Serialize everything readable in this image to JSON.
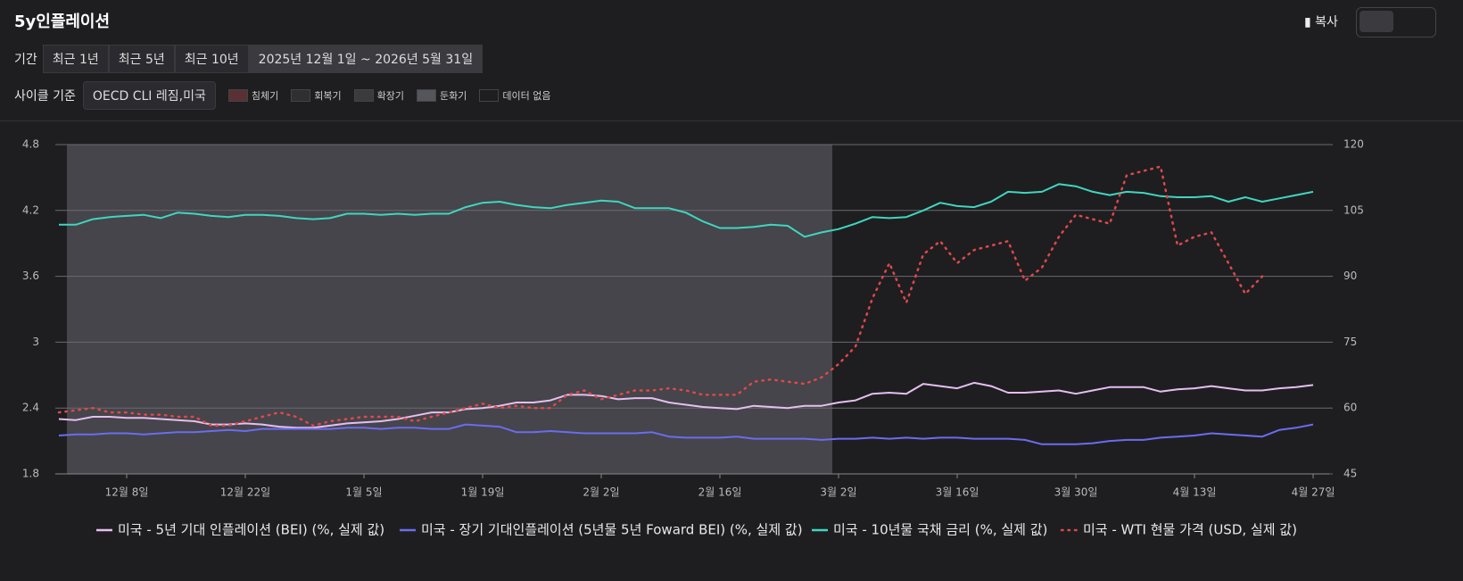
{
  "header": {
    "title": "5y인플레이션",
    "copy": "복사",
    "period_label": "기간",
    "period_buttons": [
      "최근 1년",
      "최근 5년",
      "최근 10년"
    ],
    "date_range": "2025년 12월 1일 ~ 2026년 5월 31일",
    "cycle_label": "사이클 기준",
    "cycle_source": "OECD CLI 레짐,미국",
    "cycles": [
      {
        "label": "침체기",
        "color": "#5a3034"
      },
      {
        "label": "회복기",
        "color": "#2e2e33"
      },
      {
        "label": "확장기",
        "color": "#3a3a3f"
      },
      {
        "label": "둔화기",
        "color": "#55555c"
      },
      {
        "label": "데이터 없음",
        "color": "#1e1e21"
      }
    ]
  },
  "chart_data": {
    "type": "line",
    "categories": [
      null,
      null,
      null,
      null,
      "12월 8일",
      null,
      null,
      null,
      null,
      null,
      null,
      "12월 22일",
      null,
      null,
      null,
      null,
      null,
      null,
      "1월 5일",
      null,
      null,
      null,
      null,
      null,
      null,
      "1월 19일",
      null,
      null,
      null,
      null,
      null,
      null,
      "2월 2일",
      null,
      null,
      null,
      null,
      null,
      null,
      "2월 16일",
      null,
      null,
      null,
      null,
      null,
      null,
      "3월 2일",
      null,
      null,
      null,
      null,
      null,
      null,
      "3월 16일",
      null,
      null,
      null,
      null,
      null,
      null,
      "3월 30일",
      null,
      null,
      null,
      null,
      null,
      null,
      "4월 13일",
      null,
      null,
      null,
      null,
      null,
      null,
      "4월 27일"
    ],
    "ylim": [
      1.8,
      4.8
    ],
    "yticks": [
      1.8,
      2.4,
      3,
      3.6,
      4.2,
      4.8
    ],
    "y2lim": [
      45,
      120
    ],
    "y2ticks": [
      45,
      60,
      75,
      90,
      105,
      120
    ],
    "grid": true,
    "series": [
      {
        "name": "미국 - 5년 기대 인플레이션 (BEI) (%, 실제 값)",
        "color": "#e6bff0",
        "style": "solid",
        "values": [
          2.3,
          2.29,
          2.32,
          2.32,
          2.31,
          2.31,
          2.3,
          2.29,
          2.28,
          2.25,
          2.25,
          2.26,
          2.25,
          2.23,
          2.22,
          2.22,
          2.24,
          2.26,
          2.27,
          2.28,
          2.3,
          2.33,
          2.36,
          2.36,
          2.39,
          2.4,
          2.42,
          2.45,
          2.45,
          2.47,
          2.52,
          2.52,
          2.51,
          2.48,
          2.49,
          2.49,
          2.45,
          2.43,
          2.41,
          2.4,
          2.39,
          2.42,
          2.41,
          2.4,
          2.42,
          2.42,
          2.45,
          2.47,
          2.53,
          2.54,
          2.53,
          2.62,
          2.6,
          2.58,
          2.63,
          2.6,
          2.54,
          2.54,
          2.55,
          2.56,
          2.53,
          2.56,
          2.59,
          2.59,
          2.59,
          2.55,
          2.57,
          2.58,
          2.6,
          2.58,
          2.56,
          2.56,
          2.58,
          2.59,
          2.61
        ]
      },
      {
        "name": "미국 - 장기 기대인플레이션 (5년물 5년 Foward BEI) (%, 실제 값)",
        "color": "#6b6cf0",
        "style": "solid",
        "values": [
          2.15,
          2.16,
          2.16,
          2.17,
          2.17,
          2.16,
          2.17,
          2.18,
          2.18,
          2.19,
          2.2,
          2.19,
          2.21,
          2.21,
          2.21,
          2.21,
          2.21,
          2.22,
          2.22,
          2.21,
          2.22,
          2.22,
          2.21,
          2.21,
          2.25,
          2.24,
          2.23,
          2.18,
          2.18,
          2.19,
          2.18,
          2.17,
          2.17,
          2.17,
          2.17,
          2.18,
          2.14,
          2.13,
          2.13,
          2.13,
          2.14,
          2.12,
          2.12,
          2.12,
          2.12,
          2.11,
          2.12,
          2.12,
          2.13,
          2.12,
          2.13,
          2.12,
          2.13,
          2.13,
          2.12,
          2.12,
          2.12,
          2.11,
          2.07,
          2.07,
          2.07,
          2.08,
          2.1,
          2.11,
          2.11,
          2.13,
          2.14,
          2.15,
          2.17,
          2.16,
          2.15,
          2.14,
          2.2,
          2.22,
          2.25
        ]
      },
      {
        "name": "미국 - 10년물 국채 금리 (%, 실제 값)",
        "color": "#3fd6bf",
        "style": "solid",
        "values": [
          4.07,
          4.07,
          4.12,
          4.14,
          4.15,
          4.16,
          4.13,
          4.18,
          4.17,
          4.15,
          4.14,
          4.16,
          4.16,
          4.15,
          4.13,
          4.12,
          4.13,
          4.17,
          4.17,
          4.16,
          4.17,
          4.16,
          4.17,
          4.17,
          4.23,
          4.27,
          4.28,
          4.25,
          4.23,
          4.22,
          4.25,
          4.27,
          4.29,
          4.28,
          4.22,
          4.22,
          4.22,
          4.18,
          4.1,
          4.04,
          4.04,
          4.05,
          4.07,
          4.06,
          3.96,
          4.0,
          4.03,
          4.08,
          4.14,
          4.13,
          4.14,
          4.2,
          4.27,
          4.24,
          4.23,
          4.28,
          4.37,
          4.36,
          4.37,
          4.44,
          4.42,
          4.37,
          4.34,
          4.37,
          4.36,
          4.33,
          4.32,
          4.32,
          4.33,
          4.28,
          4.32,
          4.28,
          4.31,
          4.34,
          4.37
        ]
      },
      {
        "name": "미국 - WTI 현물 가격 (USD, 실제 값)",
        "color": "#e04848",
        "style": "dotted",
        "axis": "y2",
        "values": [
          59,
          59.5,
          60,
          59,
          59,
          58.5,
          58.5,
          58,
          58,
          56,
          56,
          57,
          58,
          59,
          58,
          56,
          57,
          57.5,
          58,
          58,
          58,
          57,
          58,
          59,
          60,
          61,
          60,
          60.5,
          60,
          60,
          63,
          64,
          62,
          63,
          64,
          64,
          64.5,
          64,
          63,
          63,
          63,
          66,
          66.5,
          66,
          65.5,
          67,
          70,
          74,
          85,
          93,
          84,
          95,
          98,
          93,
          96,
          97,
          98,
          89,
          92,
          99,
          104,
          103,
          102,
          113,
          114,
          115,
          97,
          99,
          100,
          93,
          86,
          90,
          null,
          null,
          null
        ]
      }
    ]
  }
}
